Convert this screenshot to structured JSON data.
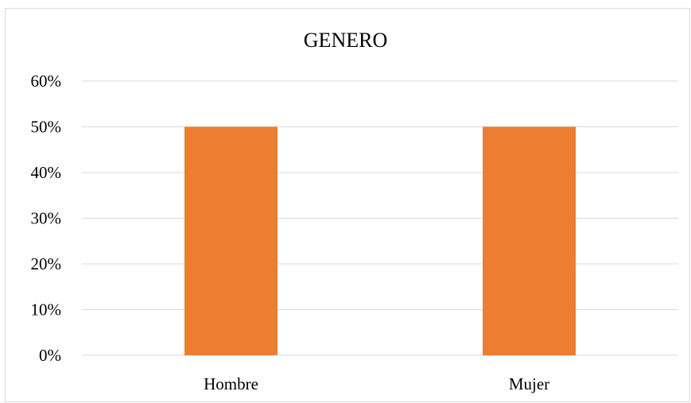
{
  "chart_data": {
    "type": "bar",
    "title": "GENERO",
    "categories": [
      "Hombre",
      "Mujer"
    ],
    "values": [
      50,
      50
    ],
    "ylim": [
      0,
      60
    ],
    "yticks": [
      "0%",
      "10%",
      "20%",
      "30%",
      "40%",
      "50%",
      "60%"
    ],
    "ytick_values": [
      0,
      10,
      20,
      30,
      40,
      50,
      60
    ],
    "xlabel": "",
    "ylabel": "",
    "grid": true,
    "legend": "none",
    "bar_color": "#ED7D31",
    "grid_color": "#D9D9D9"
  }
}
